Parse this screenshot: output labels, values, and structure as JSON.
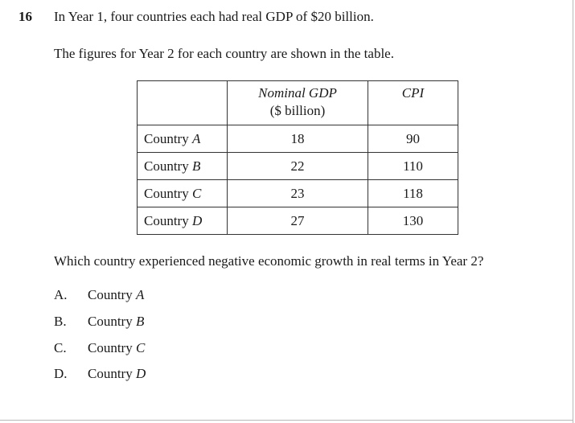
{
  "question": {
    "number": "16",
    "intro": "In Year 1, four countries each had real GDP of $20 billion.",
    "table_intro": "The figures for Year 2 for each country are shown in the table.",
    "prompt": "Which country experienced negative economic growth in real terms in Year 2?"
  },
  "table": {
    "header": {
      "nominal_line1": "Nominal GDP",
      "nominal_line2": "($ billion)",
      "cpi": "CPI"
    },
    "rows": [
      {
        "prefix": "Country",
        "letter": "A",
        "nominal": "18",
        "cpi": "90"
      },
      {
        "prefix": "Country",
        "letter": "B",
        "nominal": "22",
        "cpi": "110"
      },
      {
        "prefix": "Country",
        "letter": "C",
        "nominal": "23",
        "cpi": "118"
      },
      {
        "prefix": "Country",
        "letter": "D",
        "nominal": "27",
        "cpi": "130"
      }
    ]
  },
  "options": [
    {
      "letter": "A.",
      "prefix": "Country",
      "name": "A"
    },
    {
      "letter": "B.",
      "prefix": "Country",
      "name": "B"
    },
    {
      "letter": "C.",
      "prefix": "Country",
      "name": "C"
    },
    {
      "letter": "D.",
      "prefix": "Country",
      "name": "D"
    }
  ]
}
